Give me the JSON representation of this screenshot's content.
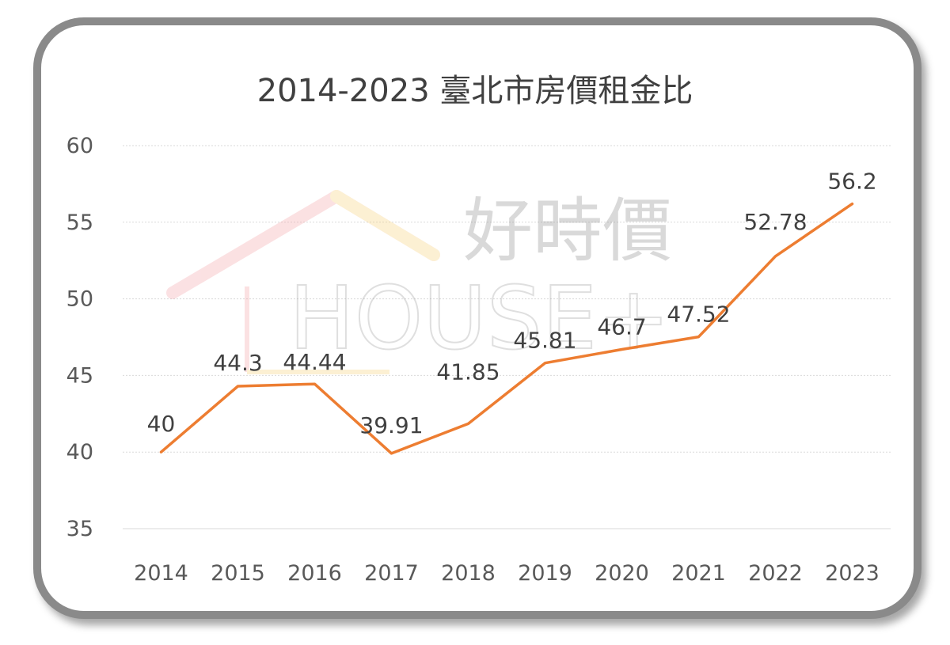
{
  "title": "2014-2023 臺北市房價租金比",
  "watermark": {
    "text_cjk": "好時價",
    "text_latin": "HOUSE+",
    "colors": [
      "#f4a3a8",
      "#f7d27a",
      "#9e9e9e"
    ]
  },
  "colors": {
    "line": "#ed7d31",
    "frame": "#8a8a8a",
    "grid": "#d9d9d9"
  },
  "chart_data": {
    "type": "line",
    "title": "2014-2023 臺北市房價租金比",
    "categories": [
      "2014",
      "2015",
      "2016",
      "2017",
      "2018",
      "2019",
      "2020",
      "2021",
      "2022",
      "2023"
    ],
    "series": [
      {
        "values": [
          40,
          44.3,
          44.44,
          39.91,
          41.85,
          45.81,
          46.7,
          47.52,
          52.78,
          56.2
        ],
        "labels": [
          "40",
          "44.3",
          "44.44",
          "39.91",
          "41.85",
          "45.81",
          "46.7",
          "47.52",
          "52.78",
          "56.2"
        ]
      }
    ],
    "ylim": [
      35,
      60
    ],
    "yticks": [
      "35",
      "40",
      "45",
      "50",
      "55",
      "60"
    ],
    "grid": true,
    "legend": "none"
  }
}
